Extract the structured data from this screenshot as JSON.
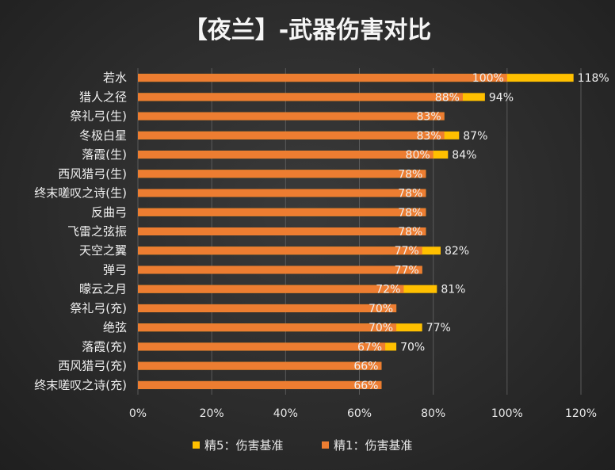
{
  "chart_data": {
    "type": "bar",
    "orientation": "horizontal",
    "title": "【夜兰】-武器伤害对比",
    "categories": [
      "若水",
      "猎人之径",
      "祭礼弓(生)",
      "冬极白星",
      "落霞(生)",
      "西风猎弓(生)",
      "终末嗟叹之诗(生)",
      "反曲弓",
      "飞雷之弦振",
      "天空之翼",
      "弹弓",
      "曚云之月",
      "祭礼弓(充)",
      "绝弦",
      "落霞(充)",
      "西风猎弓(充)",
      "终末嗟叹之诗(充)"
    ],
    "series": [
      {
        "name": "精1：伤害基准",
        "color": "#ED7D31",
        "values": [
          100,
          88,
          83,
          83,
          80,
          78,
          78,
          78,
          78,
          77,
          77,
          72,
          70,
          70,
          67,
          66,
          66
        ],
        "labels": [
          "100%",
          "88%",
          "83%",
          "83%",
          "80%",
          "78%",
          "78%",
          "78%",
          "78%",
          "77%",
          "77%",
          "72%",
          "70%",
          "70%",
          "67%",
          "66%",
          "66%"
        ]
      },
      {
        "name": "精5：伤害基准",
        "color": "#FFC000",
        "values": [
          118,
          94,
          83,
          87,
          84,
          78,
          78,
          78,
          78,
          82,
          77,
          81,
          70,
          77,
          70,
          66,
          66
        ],
        "labels": [
          "118%",
          "94%",
          "",
          "87%",
          "84%",
          "",
          "",
          "",
          "",
          "82%",
          "",
          "81%",
          "",
          "77%",
          "70%",
          "",
          ""
        ]
      }
    ],
    "xlim": [
      0,
      120
    ],
    "xticks": [
      0,
      20,
      40,
      60,
      80,
      100,
      120
    ],
    "xtick_labels": [
      "0%",
      "20%",
      "40%",
      "60%",
      "80%",
      "100%",
      "120%"
    ],
    "grid": "vertical",
    "legend": "bottom",
    "legend_order": [
      "精5：伤害基准",
      "精1：伤害基准"
    ]
  }
}
